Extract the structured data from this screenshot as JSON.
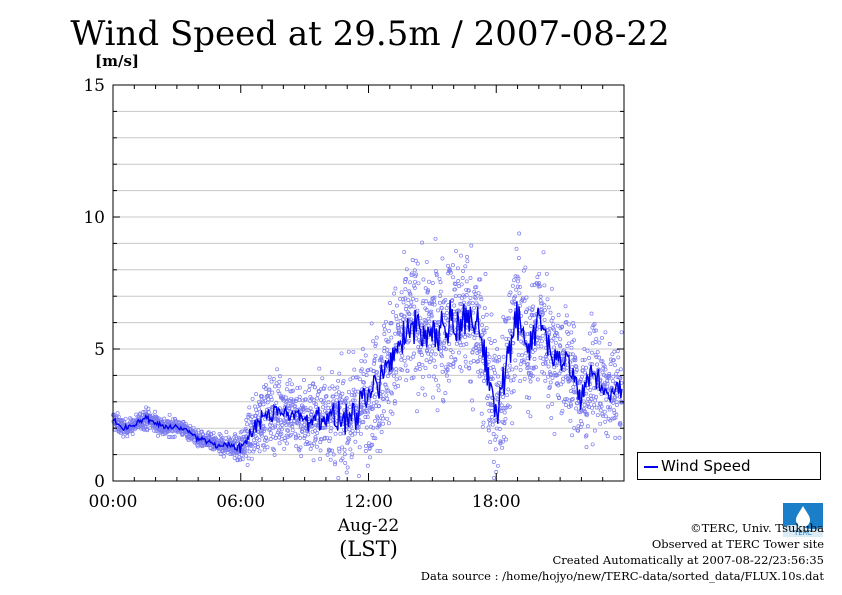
{
  "header": {
    "title": "Wind Speed at 29.5m / 2007-08-22",
    "unit": "[m/s]"
  },
  "legend": {
    "label": "Wind Speed"
  },
  "footer": {
    "credit": "©TERC, Univ. Tsukuba",
    "site": "Observed at TERC Tower site",
    "created": "Created Automatically at 2007-08-22/23:56:35",
    "source": "Data source : /home/hojyo/new/TERC-data/sorted_data/FLUX.10s.dat"
  },
  "logo": {
    "icon": "terc-logo-icon",
    "text": "TERC"
  },
  "chart_data": {
    "type": "line",
    "title": "Wind Speed at 29.5m / 2007-08-22",
    "ylabel": "[m/s]",
    "xlabel": "Aug-22",
    "xlabel2": "(LST)",
    "xlim": [
      0,
      24
    ],
    "ylim": [
      0,
      15
    ],
    "x_ticks": [
      {
        "value": 0,
        "label": "00:00"
      },
      {
        "value": 6,
        "label": "06:00"
      },
      {
        "value": 12,
        "label": "12:00"
      },
      {
        "value": 18,
        "label": "18:00"
      }
    ],
    "y_ticks": [
      {
        "value": 0,
        "label": "0"
      },
      {
        "value": 5,
        "label": "5"
      },
      {
        "value": 10,
        "label": "10"
      },
      {
        "value": 15,
        "label": "15"
      }
    ],
    "grid": true,
    "legend_position": "right",
    "colors": {
      "line": "#0000ee",
      "points": "#7b7bf0"
    },
    "series": [
      {
        "name": "Wind Speed",
        "x_hours": [
          0,
          0.5,
          1,
          1.5,
          2,
          2.5,
          3,
          3.5,
          4,
          4.5,
          5,
          5.5,
          6,
          6.5,
          7,
          7.5,
          8,
          8.5,
          9,
          9.5,
          10,
          10.5,
          11,
          11.5,
          12,
          12.5,
          13,
          13.5,
          14,
          14.5,
          15,
          15.5,
          16,
          16.5,
          17,
          17.5,
          18,
          18.5,
          19,
          19.5,
          20,
          20.5,
          21,
          21.5,
          22,
          22.5,
          23,
          23.5
        ],
        "mean_values": [
          2.3,
          2.0,
          2.1,
          2.4,
          2.2,
          2.0,
          2.1,
          1.9,
          1.6,
          1.5,
          1.3,
          1.4,
          1.2,
          1.8,
          2.4,
          2.6,
          2.7,
          2.5,
          2.4,
          2.4,
          2.5,
          2.3,
          2.4,
          2.6,
          3.2,
          3.7,
          4.5,
          5.2,
          6.2,
          5.6,
          5.6,
          5.9,
          6.0,
          6.5,
          5.8,
          4.7,
          2.4,
          4.5,
          6.5,
          5.0,
          6.2,
          5.1,
          4.7,
          4.3,
          3.0,
          4.2,
          3.5,
          3.4
        ],
        "spread": [
          0.4,
          0.3,
          0.3,
          0.4,
          0.4,
          0.4,
          0.3,
          0.3,
          0.3,
          0.3,
          0.4,
          0.4,
          0.6,
          1.0,
          1.3,
          1.4,
          1.5,
          1.5,
          1.5,
          1.6,
          1.7,
          1.7,
          1.8,
          2.0,
          2.2,
          2.3,
          2.4,
          2.6,
          2.6,
          2.5,
          2.5,
          2.6,
          2.7,
          2.7,
          2.6,
          2.8,
          3.0,
          2.8,
          2.7,
          2.5,
          2.4,
          2.4,
          2.2,
          2.1,
          2.0,
          1.9,
          1.7,
          1.6
        ]
      }
    ]
  }
}
